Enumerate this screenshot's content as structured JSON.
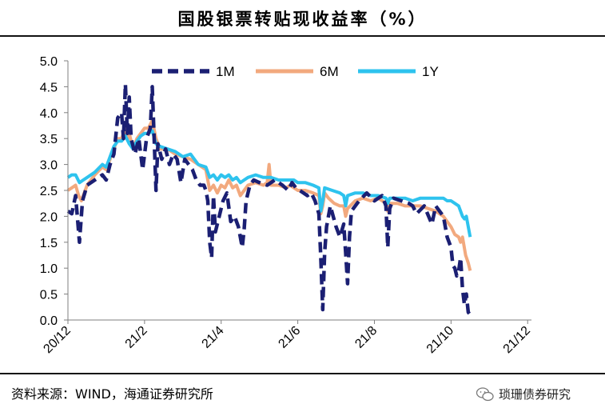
{
  "page": {
    "title": "国股银票转贴现收益率（%）",
    "source": "资料来源：WIND，海通证券研究所",
    "watermark": "琐珊债券研究",
    "watermark_icon": "wechat-icon"
  },
  "colors": {
    "s1M": "#1b1f73",
    "s6M": "#f2a97e",
    "s1Y": "#2ec3ee",
    "axis": "#7f7f7f",
    "text": "#000000"
  },
  "chart_data": {
    "type": "line",
    "title": "国股银票转贴现收益率（%）",
    "xlabel": "",
    "ylabel": "",
    "ylim": [
      0,
      5
    ],
    "yticks": [
      "0.0",
      "0.5",
      "1.0",
      "1.5",
      "2.0",
      "2.5",
      "3.0",
      "3.5",
      "4.0",
      "4.5",
      "5.0"
    ],
    "x_domain": [
      0,
      12.1
    ],
    "xticks": [
      {
        "label": "20/12",
        "x": 0
      },
      {
        "label": "21/2",
        "x": 2
      },
      {
        "label": "21/4",
        "x": 4
      },
      {
        "label": "21/6",
        "x": 6
      },
      {
        "label": "21/8",
        "x": 8
      },
      {
        "label": "21/10",
        "x": 10
      },
      {
        "label": "21/12",
        "x": 12
      }
    ],
    "legend": "top-center",
    "series": [
      {
        "name": "1M",
        "style": "dashed",
        "points": [
          [
            0.0,
            2.1
          ],
          [
            0.1,
            2.05
          ],
          [
            0.2,
            2.4
          ],
          [
            0.3,
            1.5
          ],
          [
            0.38,
            2.3
          ],
          [
            0.5,
            2.6
          ],
          [
            0.7,
            2.7
          ],
          [
            0.9,
            2.8
          ],
          [
            1.0,
            2.7
          ],
          [
            1.1,
            3.0
          ],
          [
            1.2,
            3.2
          ],
          [
            1.3,
            3.9
          ],
          [
            1.4,
            4.0
          ],
          [
            1.45,
            3.5
          ],
          [
            1.5,
            4.55
          ],
          [
            1.55,
            3.6
          ],
          [
            1.6,
            4.3
          ],
          [
            1.65,
            3.5
          ],
          [
            1.75,
            3.2
          ],
          [
            1.85,
            3.5
          ],
          [
            1.95,
            2.9
          ],
          [
            2.05,
            3.5
          ],
          [
            2.15,
            3.7
          ],
          [
            2.2,
            4.5
          ],
          [
            2.25,
            3.5
          ],
          [
            2.3,
            2.5
          ],
          [
            2.35,
            3.4
          ],
          [
            2.45,
            3.1
          ],
          [
            2.55,
            3.3
          ],
          [
            2.65,
            3.0
          ],
          [
            2.75,
            3.2
          ],
          [
            2.85,
            3.1
          ],
          [
            2.95,
            2.65
          ],
          [
            3.05,
            3.1
          ],
          [
            3.15,
            3.0
          ],
          [
            3.25,
            2.9
          ],
          [
            3.35,
            2.7
          ],
          [
            3.45,
            2.6
          ],
          [
            3.55,
            2.6
          ],
          [
            3.6,
            2.5
          ],
          [
            3.65,
            2.3
          ],
          [
            3.7,
            1.5
          ],
          [
            3.75,
            1.2
          ],
          [
            3.8,
            2.4
          ],
          [
            3.85,
            1.7
          ],
          [
            3.95,
            2.0
          ],
          [
            4.05,
            2.3
          ],
          [
            4.15,
            2.45
          ],
          [
            4.25,
            1.9
          ],
          [
            4.35,
            2.0
          ],
          [
            4.45,
            1.8
          ],
          [
            4.55,
            1.4
          ],
          [
            4.6,
            1.75
          ],
          [
            4.65,
            2.3
          ],
          [
            4.75,
            2.6
          ],
          [
            4.85,
            2.7
          ],
          [
            5.0,
            2.65
          ],
          [
            5.2,
            2.6
          ],
          [
            5.4,
            2.7
          ],
          [
            5.6,
            2.6
          ],
          [
            5.75,
            2.5
          ],
          [
            5.85,
            2.65
          ],
          [
            5.95,
            2.55
          ],
          [
            6.05,
            2.5
          ],
          [
            6.15,
            2.45
          ],
          [
            6.25,
            2.4
          ],
          [
            6.35,
            2.45
          ],
          [
            6.45,
            2.3
          ],
          [
            6.55,
            2.05
          ],
          [
            6.6,
            1.2
          ],
          [
            6.65,
            0.2
          ],
          [
            6.7,
            1.3
          ],
          [
            6.75,
            1.8
          ],
          [
            6.85,
            2.2
          ],
          [
            7.0,
            1.8
          ],
          [
            7.1,
            1.6
          ],
          [
            7.2,
            1.85
          ],
          [
            7.25,
            1.3
          ],
          [
            7.3,
            0.7
          ],
          [
            7.35,
            1.6
          ],
          [
            7.4,
            2.1
          ],
          [
            7.6,
            2.3
          ],
          [
            7.8,
            2.45
          ],
          [
            8.0,
            2.3
          ],
          [
            8.2,
            2.4
          ],
          [
            8.3,
            2.2
          ],
          [
            8.35,
            1.4
          ],
          [
            8.4,
            2.15
          ],
          [
            8.5,
            2.35
          ],
          [
            8.7,
            2.3
          ],
          [
            8.9,
            2.25
          ],
          [
            9.0,
            2.2
          ],
          [
            9.1,
            2.05
          ],
          [
            9.3,
            2.2
          ],
          [
            9.5,
            1.85
          ],
          [
            9.6,
            2.2
          ],
          [
            9.8,
            2.0
          ],
          [
            9.9,
            1.6
          ],
          [
            10.0,
            1.4
          ],
          [
            10.05,
            1.05
          ],
          [
            10.1,
            1.0
          ],
          [
            10.15,
            0.85
          ],
          [
            10.2,
            0.95
          ],
          [
            10.25,
            1.2
          ],
          [
            10.3,
            0.6
          ],
          [
            10.35,
            0.3
          ],
          [
            10.4,
            0.5
          ],
          [
            10.45,
            0.15
          ],
          [
            10.55,
            0.05
          ]
        ]
      },
      {
        "name": "6M",
        "style": "solid",
        "points": [
          [
            0.0,
            2.5
          ],
          [
            0.1,
            2.55
          ],
          [
            0.2,
            2.6
          ],
          [
            0.28,
            2.4
          ],
          [
            0.35,
            2.3
          ],
          [
            0.5,
            2.6
          ],
          [
            0.7,
            2.8
          ],
          [
            0.9,
            2.95
          ],
          [
            1.0,
            2.9
          ],
          [
            1.1,
            3.1
          ],
          [
            1.2,
            3.3
          ],
          [
            1.3,
            3.5
          ],
          [
            1.4,
            3.5
          ],
          [
            1.5,
            3.7
          ],
          [
            1.55,
            3.5
          ],
          [
            1.6,
            3.6
          ],
          [
            1.7,
            3.3
          ],
          [
            1.8,
            3.5
          ],
          [
            1.9,
            3.6
          ],
          [
            2.0,
            3.7
          ],
          [
            2.1,
            3.7
          ],
          [
            2.2,
            3.85
          ],
          [
            2.3,
            3.5
          ],
          [
            2.4,
            3.3
          ],
          [
            2.6,
            3.3
          ],
          [
            2.8,
            3.2
          ],
          [
            3.0,
            3.15
          ],
          [
            3.2,
            3.1
          ],
          [
            3.4,
            3.0
          ],
          [
            3.6,
            2.9
          ],
          [
            3.7,
            2.5
          ],
          [
            3.8,
            2.6
          ],
          [
            3.9,
            2.45
          ],
          [
            4.0,
            2.6
          ],
          [
            4.1,
            2.55
          ],
          [
            4.2,
            2.7
          ],
          [
            4.3,
            2.55
          ],
          [
            4.4,
            2.6
          ],
          [
            4.5,
            2.4
          ],
          [
            4.6,
            2.5
          ],
          [
            4.7,
            2.6
          ],
          [
            4.9,
            2.65
          ],
          [
            5.1,
            2.6
          ],
          [
            5.2,
            2.65
          ],
          [
            5.25,
            3.0
          ],
          [
            5.3,
            2.6
          ],
          [
            5.5,
            2.6
          ],
          [
            5.7,
            2.55
          ],
          [
            5.8,
            2.6
          ],
          [
            5.9,
            2.55
          ],
          [
            6.0,
            2.5
          ],
          [
            6.2,
            2.5
          ],
          [
            6.4,
            2.45
          ],
          [
            6.55,
            2.4
          ],
          [
            6.6,
            2.05
          ],
          [
            6.65,
            2.2
          ],
          [
            6.7,
            2.45
          ],
          [
            6.8,
            2.35
          ],
          [
            6.95,
            2.25
          ],
          [
            7.1,
            2.2
          ],
          [
            7.2,
            2.2
          ],
          [
            7.25,
            2.0
          ],
          [
            7.3,
            2.15
          ],
          [
            7.5,
            2.3
          ],
          [
            7.7,
            2.35
          ],
          [
            7.9,
            2.3
          ],
          [
            8.1,
            2.35
          ],
          [
            8.3,
            2.25
          ],
          [
            8.35,
            2.1
          ],
          [
            8.4,
            2.25
          ],
          [
            8.6,
            2.25
          ],
          [
            8.8,
            2.2
          ],
          [
            9.0,
            2.2
          ],
          [
            9.2,
            2.2
          ],
          [
            9.4,
            2.15
          ],
          [
            9.6,
            2.1
          ],
          [
            9.7,
            2.05
          ],
          [
            9.8,
            2.0
          ],
          [
            9.9,
            1.9
          ],
          [
            10.0,
            1.8
          ],
          [
            10.1,
            1.65
          ],
          [
            10.2,
            1.6
          ],
          [
            10.25,
            1.5
          ],
          [
            10.3,
            1.6
          ],
          [
            10.38,
            1.25
          ],
          [
            10.45,
            1.1
          ],
          [
            10.5,
            0.95
          ]
        ]
      },
      {
        "name": "1Y",
        "style": "solid",
        "points": [
          [
            0.0,
            2.75
          ],
          [
            0.1,
            2.8
          ],
          [
            0.2,
            2.8
          ],
          [
            0.3,
            2.65
          ],
          [
            0.4,
            2.7
          ],
          [
            0.5,
            2.75
          ],
          [
            0.7,
            2.85
          ],
          [
            0.9,
            3.0
          ],
          [
            1.0,
            2.95
          ],
          [
            1.1,
            3.15
          ],
          [
            1.2,
            3.35
          ],
          [
            1.3,
            3.45
          ],
          [
            1.4,
            3.45
          ],
          [
            1.5,
            3.55
          ],
          [
            1.6,
            3.4
          ],
          [
            1.7,
            3.3
          ],
          [
            1.8,
            3.45
          ],
          [
            1.9,
            3.55
          ],
          [
            2.0,
            3.6
          ],
          [
            2.1,
            3.6
          ],
          [
            2.2,
            3.65
          ],
          [
            2.3,
            3.4
          ],
          [
            2.4,
            3.35
          ],
          [
            2.6,
            3.3
          ],
          [
            2.8,
            3.25
          ],
          [
            3.0,
            3.15
          ],
          [
            3.2,
            3.2
          ],
          [
            3.4,
            3.0
          ],
          [
            3.6,
            2.95
          ],
          [
            3.7,
            2.75
          ],
          [
            3.8,
            2.8
          ],
          [
            3.9,
            2.7
          ],
          [
            4.0,
            2.8
          ],
          [
            4.1,
            2.75
          ],
          [
            4.2,
            2.8
          ],
          [
            4.3,
            2.7
          ],
          [
            4.4,
            2.75
          ],
          [
            4.5,
            2.65
          ],
          [
            4.6,
            2.7
          ],
          [
            4.7,
            2.75
          ],
          [
            4.9,
            2.8
          ],
          [
            5.1,
            2.75
          ],
          [
            5.3,
            2.75
          ],
          [
            5.5,
            2.7
          ],
          [
            5.7,
            2.7
          ],
          [
            5.9,
            2.7
          ],
          [
            6.0,
            2.65
          ],
          [
            6.2,
            2.65
          ],
          [
            6.4,
            2.6
          ],
          [
            6.55,
            2.55
          ],
          [
            6.6,
            2.1
          ],
          [
            6.65,
            2.3
          ],
          [
            6.7,
            2.55
          ],
          [
            6.9,
            2.5
          ],
          [
            7.1,
            2.45
          ],
          [
            7.2,
            2.4
          ],
          [
            7.25,
            2.2
          ],
          [
            7.3,
            2.4
          ],
          [
            7.5,
            2.45
          ],
          [
            7.7,
            2.45
          ],
          [
            7.9,
            2.4
          ],
          [
            8.1,
            2.4
          ],
          [
            8.3,
            2.35
          ],
          [
            8.35,
            2.25
          ],
          [
            8.4,
            2.35
          ],
          [
            8.6,
            2.35
          ],
          [
            8.8,
            2.35
          ],
          [
            9.0,
            2.3
          ],
          [
            9.2,
            2.35
          ],
          [
            9.4,
            2.35
          ],
          [
            9.6,
            2.35
          ],
          [
            9.8,
            2.35
          ],
          [
            9.9,
            2.3
          ],
          [
            10.0,
            2.3
          ],
          [
            10.1,
            2.25
          ],
          [
            10.2,
            2.2
          ],
          [
            10.25,
            2.1
          ],
          [
            10.3,
            2.0
          ],
          [
            10.35,
            1.95
          ],
          [
            10.4,
            2.0
          ],
          [
            10.45,
            1.8
          ],
          [
            10.5,
            1.6
          ]
        ]
      }
    ]
  }
}
